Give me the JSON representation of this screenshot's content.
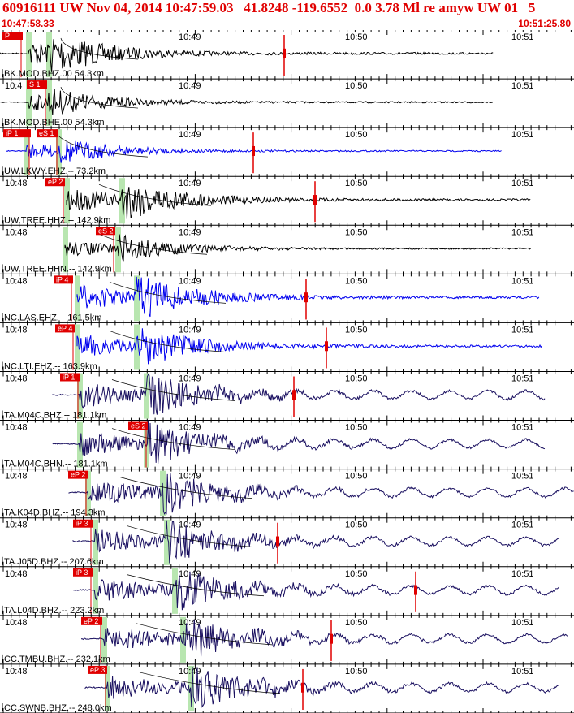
{
  "header": {
    "title": "60916111 UW Nov 04, 2014 10:47:59.03   41.8248 -119.6552  0.0 3.78 Ml re amyw UW 01   5",
    "start_time": "10:47:58.33",
    "end_time": "10:51:25.80"
  },
  "colors": {
    "header_red": "#e00000",
    "pick_red": "#e00000",
    "pick_band_green": "#b8e6b0",
    "trace_black": "#000000",
    "trace_blue": "#0000ee",
    "trace_navy": "#1a1060"
  },
  "panels": [
    {
      "label": "BK.MOD.BHZ.00 54.3km",
      "color": "black",
      "time_labels": [
        "10:4",
        "10:49",
        "10:50",
        "10:51"
      ],
      "picks": [
        "P"
      ],
      "amplitude": 0.9,
      "trace_end": 0.86
    },
    {
      "label": "BK.MOD.BHE.00 54.3km",
      "color": "black",
      "time_labels": [
        "10:4",
        "10:49",
        "10:50",
        "10:51"
      ],
      "picks": [
        "S 1"
      ],
      "amplitude": 0.6,
      "trace_end": 0.86
    },
    {
      "label": "UW.LKWY.EHZ.-- 73.2km",
      "color": "blue",
      "time_labels": [
        "10:4",
        "10:49",
        "10:50",
        "10:51"
      ],
      "picks": [
        "iP 1",
        "eS 1"
      ],
      "amplitude": 0.55,
      "trace_end": 0.875
    },
    {
      "label": "UW.TREE.HHZ.-- 142.9km",
      "color": "black",
      "time_labels": [
        "10:48",
        "10:49",
        "10:50",
        "10:51"
      ],
      "picks": [
        "eP 2"
      ],
      "amplitude": 0.9,
      "trace_end": 0.925
    },
    {
      "label": "UW.TREE.HHN.-- 142.9km",
      "color": "black",
      "time_labels": [
        "10:48",
        "10:49",
        "10:50",
        "10:51"
      ],
      "picks": [
        "eS 2"
      ],
      "amplitude": 0.6,
      "trace_end": 0.925
    },
    {
      "label": "NC.LAS.EHZ.-- 161.5km",
      "color": "blue",
      "time_labels": [
        "10:48",
        "10:49",
        "10:50",
        "10:51"
      ],
      "picks": [
        "iP 4"
      ],
      "amplitude": 0.95,
      "trace_end": 0.94
    },
    {
      "label": "NC.LTI.EHZ.-- 163.9km",
      "color": "blue",
      "time_labels": [
        "10:48",
        "10:49",
        "10:50",
        "10:51"
      ],
      "picks": [
        "eP 4"
      ],
      "amplitude": 0.9,
      "trace_end": 0.945
    },
    {
      "label": "TA.M04C.BHZ.-- 181.1km",
      "color": "navy",
      "time_labels": [
        "10:48",
        "10:49",
        "10:50",
        "10:51"
      ],
      "picks": [
        "iP 1"
      ],
      "amplitude": 0.95,
      "trace_end": 0.95
    },
    {
      "label": "TA.M04C.BHN.-- 181.1km",
      "color": "navy",
      "time_labels": [
        "10:48",
        "10:49",
        "10:50",
        "10:51"
      ],
      "picks": [
        "eS 2"
      ],
      "amplitude": 0.95,
      "trace_end": 0.95
    },
    {
      "label": "TA.K04D.BHZ.-- 194.3km",
      "color": "navy",
      "time_labels": [
        "10:48",
        "10:49",
        "10:50",
        "10:51"
      ],
      "picks": [
        "eP 2"
      ],
      "amplitude": 0.95,
      "trace_end": 1.0
    },
    {
      "label": "TA.J05D.BHZ.-- 207.6km",
      "color": "navy",
      "time_labels": [
        "10:48",
        "10:49",
        "10:50",
        "10:51"
      ],
      "picks": [
        "iP 3"
      ],
      "amplitude": 0.95,
      "trace_end": 0.975
    },
    {
      "label": "TA.L04D.BHZ.-- 223.2km",
      "color": "navy",
      "time_labels": [
        "10:48",
        "10:49",
        "10:50",
        "10:51"
      ],
      "picks": [
        "iP 3"
      ],
      "amplitude": 0.95,
      "trace_end": 0.975
    },
    {
      "label": "CC.TMBU.BHZ.-- 232.1km",
      "color": "navy",
      "time_labels": [
        "10:48",
        "10:49",
        "10:50",
        "10:51"
      ],
      "picks": [
        "eP 2"
      ],
      "amplitude": 0.95,
      "trace_end": 0.99
    },
    {
      "label": "CC.SWNB.BHZ.-- 248.0km",
      "color": "navy",
      "time_labels": [
        "10:48",
        "10:49",
        "10:50",
        "10:51"
      ],
      "picks": [
        "eP 3"
      ],
      "amplitude": 0.95,
      "trace_end": 0.975
    }
  ]
}
